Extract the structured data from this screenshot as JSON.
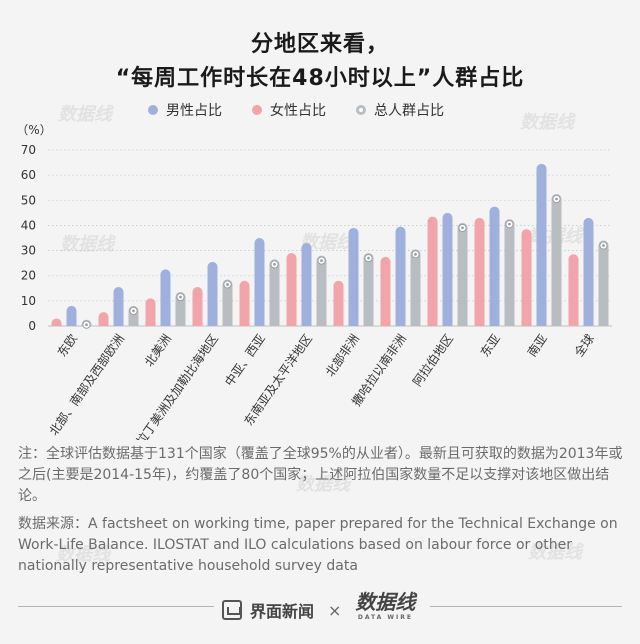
{
  "title_line1": "分地区来看，",
  "title_line2": "“每周工作时长在48小时以上”人群占比",
  "legend": {
    "male": "男性占比",
    "female": "女性占比",
    "total": "总人群占比"
  },
  "colors": {
    "male": "#9fb0dd",
    "female": "#f1a5aa",
    "total": "#b8bdc1"
  },
  "chart_data": {
    "type": "bar",
    "ylabel": "（%）",
    "ylim": [
      0,
      70
    ],
    "yticks": [
      0,
      10,
      20,
      30,
      40,
      50,
      60,
      70
    ],
    "categories": [
      "东欧",
      "北部、南部及西部欧洲",
      "北美洲",
      "拉丁美洲及加勒比海地区",
      "中亚、西亚",
      "东南亚及太平洋地区",
      "北部非洲",
      "撒哈拉以南非洲",
      "阿拉伯地区",
      "东亚",
      "南亚",
      "全球"
    ],
    "series": [
      {
        "name": "女性占比",
        "key": "female",
        "values": [
          3,
          5.5,
          11,
          15.5,
          18,
          29,
          18,
          27.5,
          43.5,
          43,
          38.5,
          28.5
        ]
      },
      {
        "name": "男性占比",
        "key": "male",
        "values": [
          8,
          15.5,
          22.5,
          25.5,
          35,
          33,
          39,
          39.5,
          45,
          47.5,
          64.5,
          43
        ]
      },
      {
        "name": "总人群占比",
        "key": "total",
        "values": [
          2.5,
          8,
          13.5,
          18.5,
          26.5,
          28,
          29,
          30.5,
          41,
          42.5,
          52.5,
          34
        ]
      }
    ]
  },
  "note": "注：全球评估数据基于131个国家（覆盖了全球95%的从业者）。最新且可获取的数据为2013年或之后(主要是2014-15年)，约覆盖了80个国家；上述阿拉伯国家数量不足以支撑对该地区做出结论。",
  "source": "数据来源：A factsheet on working time, paper prepared for the Technical Exchange on Work-Life Balance. ILOSTAT and ILO calculations based on labour force or other nationally representative household survey data",
  "footer": {
    "brand1": "界面新闻",
    "times": "×",
    "brand2": "数据线",
    "brand2_sub": "DATA WIRE"
  },
  "watermark": "数据线"
}
